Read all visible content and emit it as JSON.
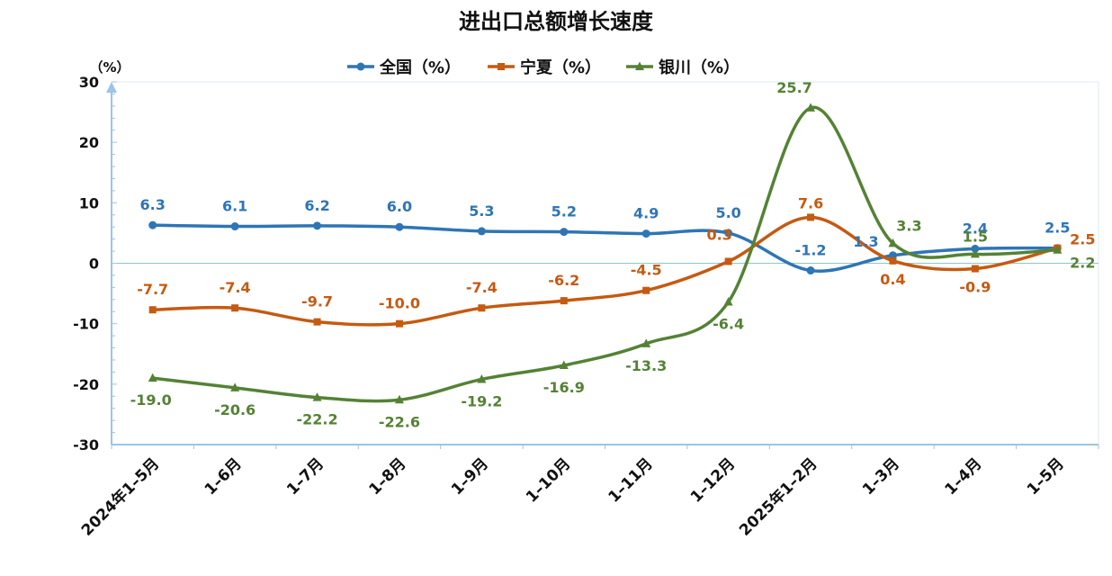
{
  "chart_data": {
    "type": "line",
    "title": "进出口总额增长速度",
    "y_unit_label": "（%）",
    "ylim": [
      -30,
      30
    ],
    "yticks": [
      30,
      20,
      10,
      0,
      -10,
      -20,
      -30
    ],
    "categories": [
      "2024年1–5月",
      "1–6月",
      "1–7月",
      "1–8月",
      "1–9月",
      "1–10月",
      "1–11月",
      "1–12月",
      "2025年1–2月",
      "1–3月",
      "1–4月",
      "1–5月"
    ],
    "legend_position": "top",
    "series": [
      {
        "name": "全国（%）",
        "color": "#2E75B6",
        "marker": "circle",
        "values": [
          6.3,
          6.1,
          6.2,
          6.0,
          5.3,
          5.2,
          4.9,
          5.0,
          -1.2,
          1.3,
          2.4,
          2.5
        ],
        "labels": [
          "6.3",
          "6.1",
          "6.2",
          "6.0",
          "5.3",
          "5.2",
          "4.9",
          "5.0",
          "-1.2",
          "1.3",
          "2.4",
          "2.5"
        ]
      },
      {
        "name": "宁夏（%）",
        "color": "#C55A11",
        "marker": "square",
        "values": [
          -7.7,
          -7.4,
          -9.7,
          -10.0,
          -7.4,
          -6.2,
          -4.5,
          0.3,
          7.6,
          0.4,
          -0.9,
          2.5
        ],
        "labels": [
          "-7.7",
          "-7.4",
          "-9.7",
          "-10.0",
          "-7.4",
          "-6.2",
          "-4.5",
          "0.3",
          "7.6",
          "0.4",
          "-0.9",
          "2.5"
        ]
      },
      {
        "name": "银川（%）",
        "color": "#548235",
        "marker": "triangle",
        "values": [
          -19.0,
          -20.6,
          -22.2,
          -22.6,
          -19.2,
          -16.9,
          -13.3,
          -6.4,
          25.7,
          3.3,
          1.5,
          2.2
        ],
        "labels": [
          "-19.0",
          "-20.6",
          "-22.2",
          "-22.6",
          "-19.2",
          "-16.9",
          "-13.3",
          "-6.4",
          "25.7",
          "3.3",
          "1.5",
          "2.2"
        ]
      }
    ]
  }
}
